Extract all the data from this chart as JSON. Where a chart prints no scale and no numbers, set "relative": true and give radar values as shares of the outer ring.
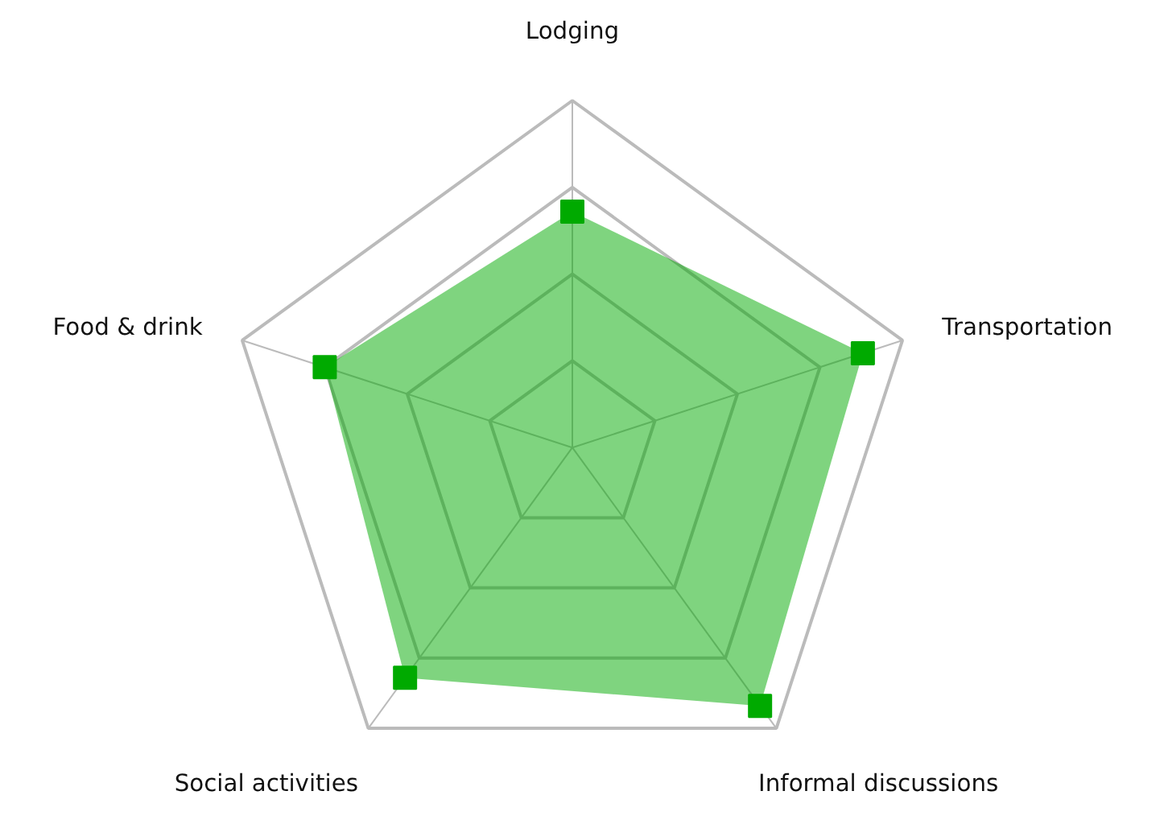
{
  "chart_data": {
    "type": "radar",
    "categories": [
      "Lodging",
      "Transportation",
      "Informal discussions",
      "Social activities",
      "Food & drink"
    ],
    "relative": true,
    "grid": true,
    "marker": "square",
    "series": [
      {
        "color": "#00aa00",
        "values": [
          0.68,
          0.88,
          0.92,
          0.82,
          0.75
        ]
      }
    ]
  }
}
